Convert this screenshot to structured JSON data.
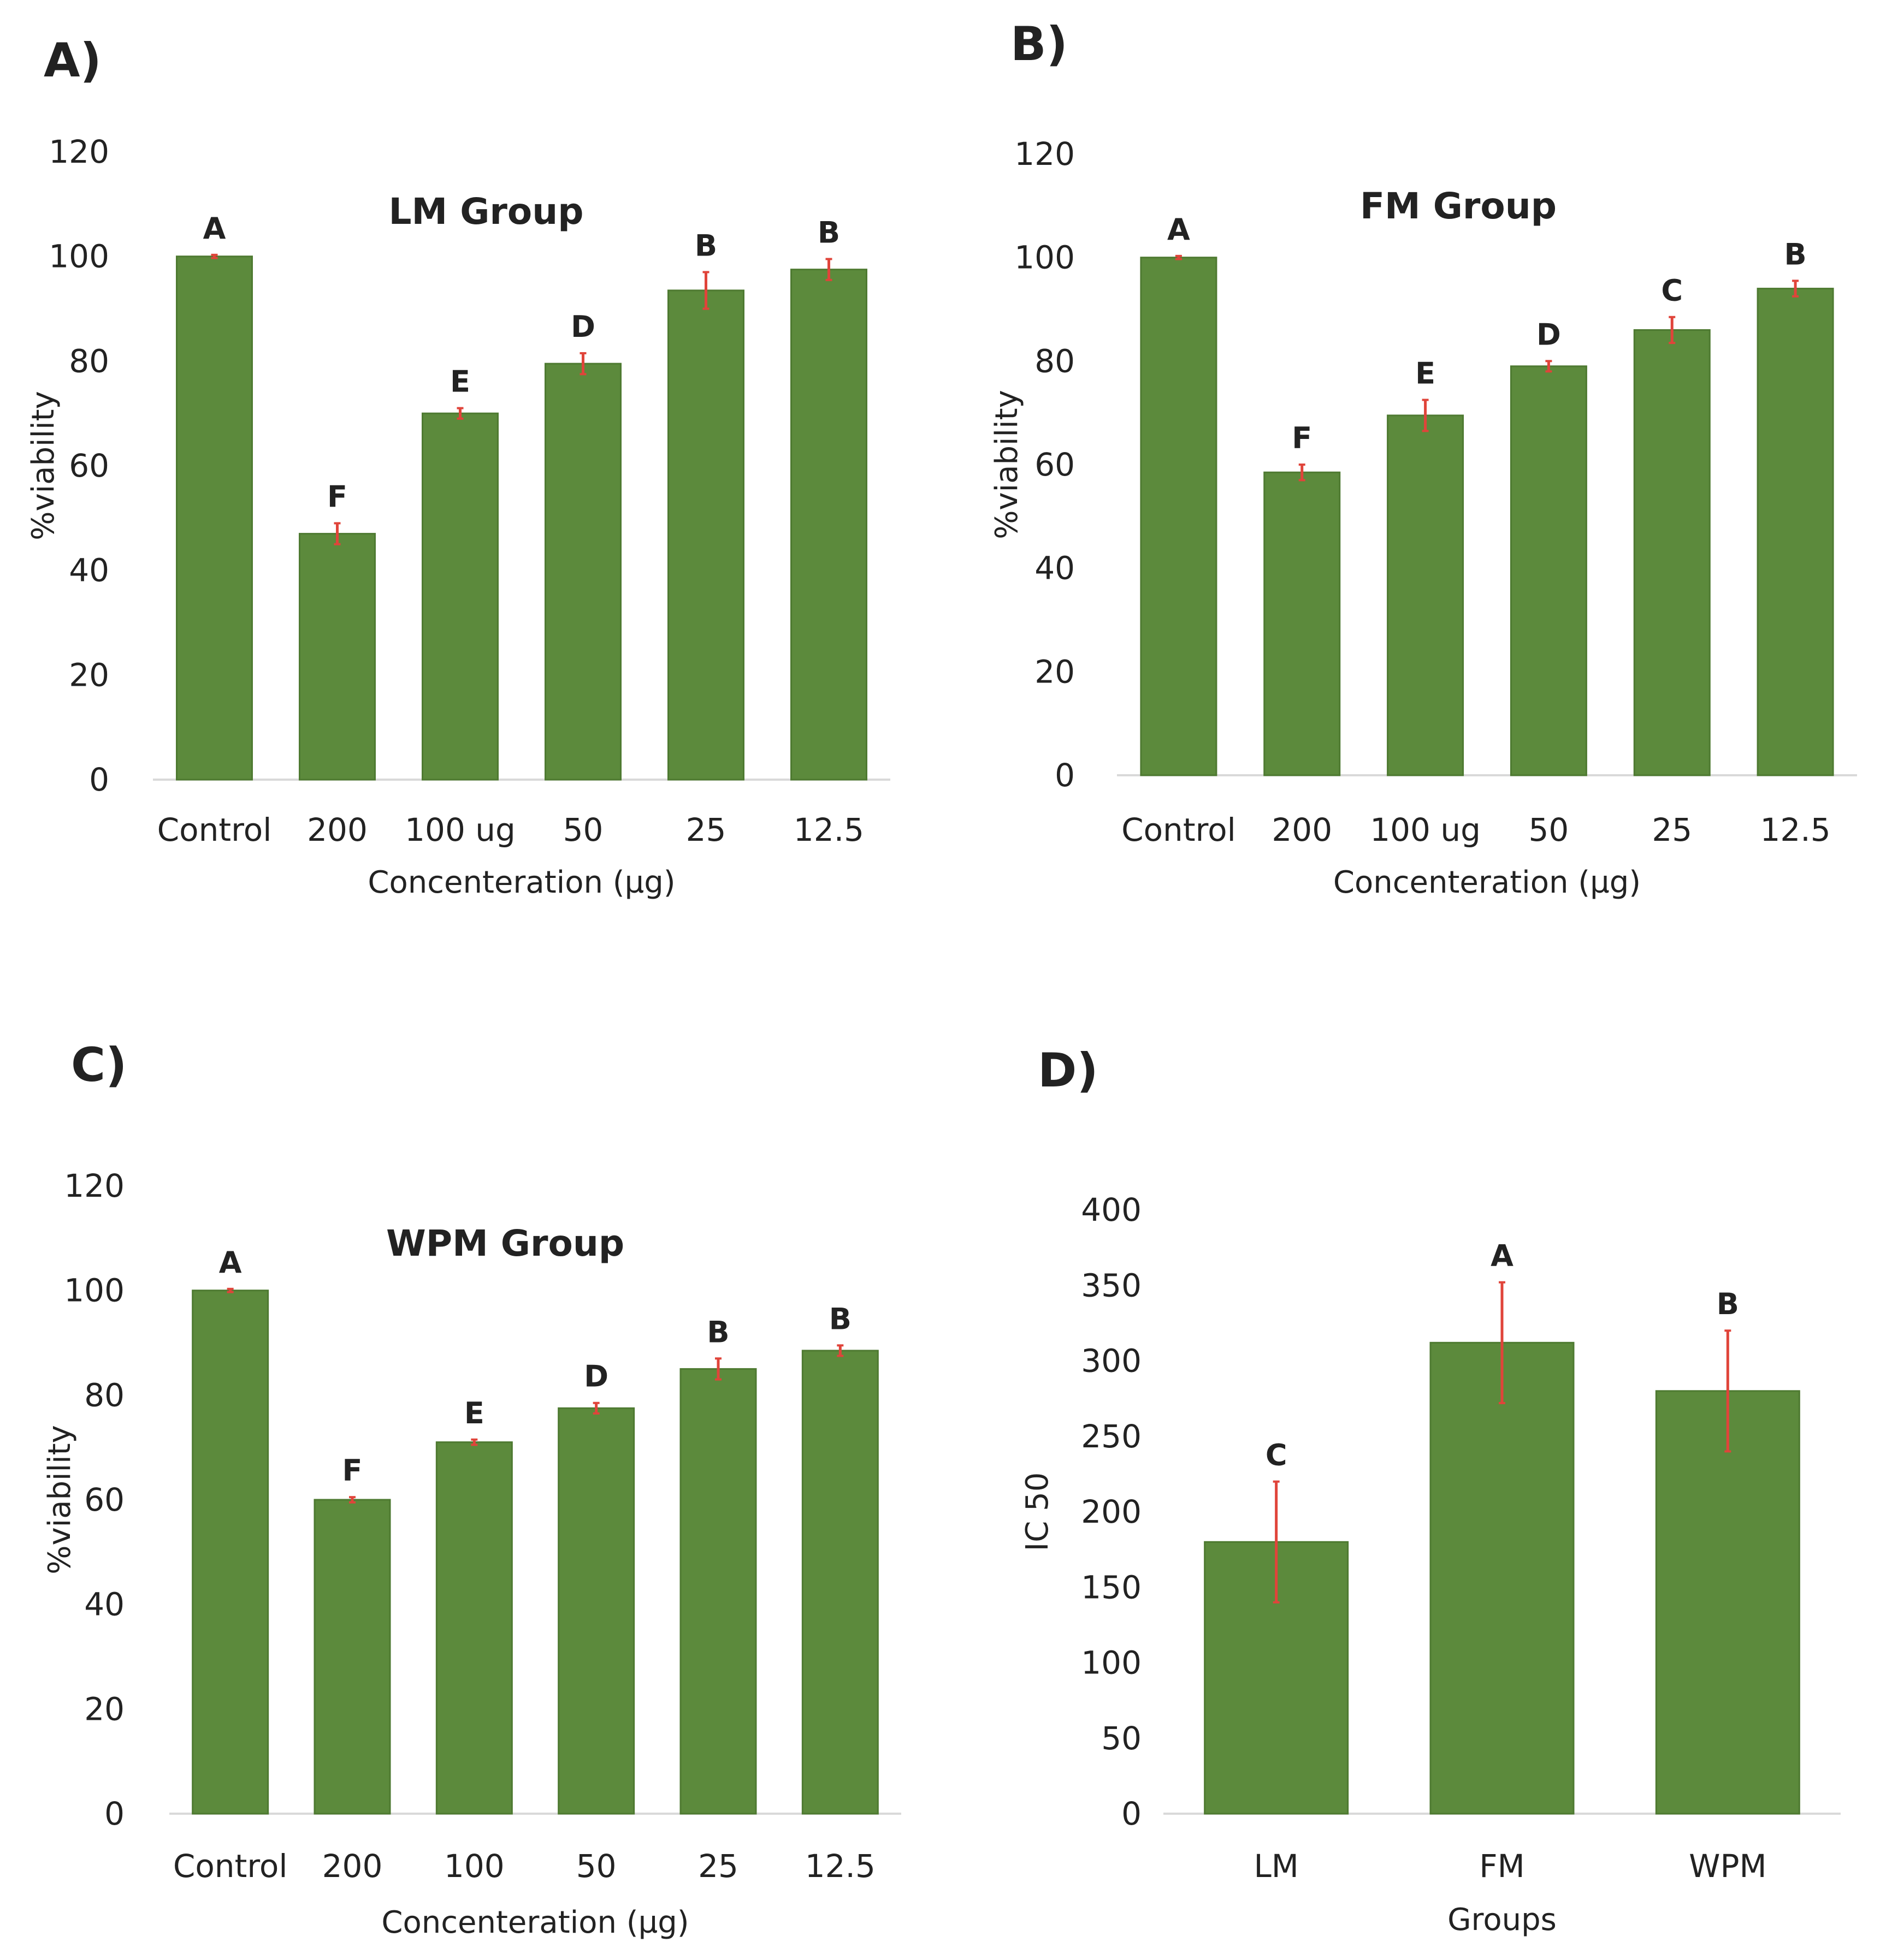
{
  "colors": {
    "bar": "#5c8a3c",
    "bar_edge": "#4e7a31",
    "error": "#e0443a",
    "axis": "#d9d9d9"
  },
  "chart_data": [
    {
      "id": "A",
      "panel_label": "A)",
      "type": "bar",
      "title": "LM Group",
      "xlabel": "Concenteration (µg)",
      "ylabel": "%viability",
      "ylim": [
        0,
        120
      ],
      "yticks": [
        0,
        20,
        40,
        60,
        80,
        100,
        120
      ],
      "categories": [
        "Control",
        "200",
        "100 ug",
        "50",
        "25",
        "12.5"
      ],
      "values": [
        100,
        47,
        70,
        79.5,
        93.5,
        97.5
      ],
      "errors": [
        0.3,
        2,
        1,
        2,
        3.5,
        2
      ],
      "significance": [
        "A",
        "F",
        "E",
        "D",
        "B",
        "B"
      ]
    },
    {
      "id": "B",
      "panel_label": "B)",
      "type": "bar",
      "title": "FM Group",
      "xlabel": "Concenteration (µg)",
      "ylabel": "%viability",
      "ylim": [
        0,
        120
      ],
      "yticks": [
        0,
        20,
        40,
        60,
        80,
        100,
        120
      ],
      "categories": [
        "Control",
        "200",
        "100 ug",
        "50",
        "25",
        "12.5"
      ],
      "values": [
        100,
        58.5,
        69.5,
        79,
        86,
        94
      ],
      "errors": [
        0.3,
        1.5,
        3,
        1,
        2.5,
        1.5
      ],
      "significance": [
        "A",
        "F",
        "E",
        "D",
        "C",
        "B"
      ]
    },
    {
      "id": "C",
      "panel_label": "C)",
      "type": "bar",
      "title": "WPM Group",
      "xlabel": "Concenteration (µg)",
      "ylabel": "%viability",
      "ylim": [
        0,
        120
      ],
      "yticks": [
        0,
        20,
        40,
        60,
        80,
        100,
        120
      ],
      "categories": [
        "Control",
        "200",
        "100",
        "50",
        "25",
        "12.5"
      ],
      "values": [
        100,
        60,
        71,
        77.5,
        85,
        88.5
      ],
      "errors": [
        0.3,
        0.5,
        0.5,
        1,
        2,
        1
      ],
      "significance": [
        "A",
        "F",
        "E",
        "D",
        "B",
        "B"
      ]
    },
    {
      "id": "D",
      "panel_label": "D)",
      "type": "bar",
      "title": "",
      "xlabel": "Groups",
      "ylabel": "IC 50",
      "ylim": [
        0,
        400
      ],
      "yticks": [
        0,
        50,
        100,
        150,
        200,
        250,
        300,
        350,
        400
      ],
      "categories": [
        "LM",
        "FM",
        "WPM"
      ],
      "values": [
        180,
        312,
        280
      ],
      "errors": [
        40,
        40,
        40
      ],
      "significance": [
        "C",
        "A",
        "B"
      ]
    }
  ]
}
